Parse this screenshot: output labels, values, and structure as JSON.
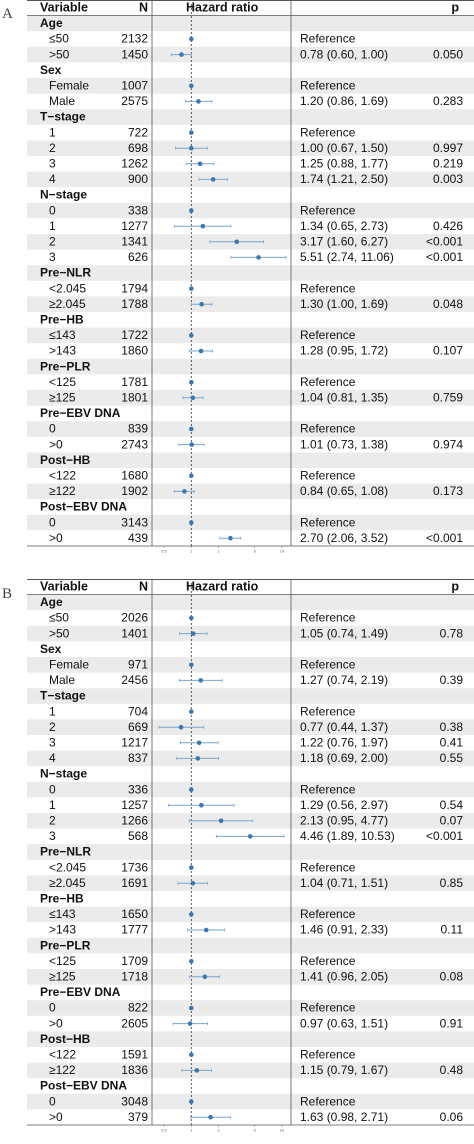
{
  "chart_data": [
    {
      "type": "forest",
      "panel_label": "A",
      "columns": {
        "variable": "Variable",
        "n": "N",
        "plot": "Hazard ratio",
        "p": "p"
      },
      "axis": {
        "scale": "log",
        "range": [
          0.5,
          10
        ],
        "reference_line": 1,
        "tick_labels": [
          "0.5",
          "1",
          "2",
          "5",
          "10"
        ]
      },
      "groups": [
        {
          "name": "Age",
          "rows": [
            {
              "label": "≤50",
              "n": "2132",
              "ci": "Reference",
              "p": "",
              "hr": 1.0,
              "lo": null,
              "hi": null
            },
            {
              "label": ">50",
              "n": "1450",
              "ci": "0.78 (0.60, 1.00)",
              "p": "0.050",
              "hr": 0.78,
              "lo": 0.6,
              "hi": 1.0
            }
          ]
        },
        {
          "name": "Sex",
          "rows": [
            {
              "label": "Female",
              "n": "1007",
              "ci": "Reference",
              "p": "",
              "hr": 1.0,
              "lo": null,
              "hi": null
            },
            {
              "label": "Male",
              "n": "2575",
              "ci": "1.20 (0.86, 1.69)",
              "p": "0.283",
              "hr": 1.2,
              "lo": 0.86,
              "hi": 1.69
            }
          ]
        },
        {
          "name": "T−stage",
          "rows": [
            {
              "label": "1",
              "n": "722",
              "ci": "Reference",
              "p": "",
              "hr": 1.0,
              "lo": null,
              "hi": null
            },
            {
              "label": "2",
              "n": "698",
              "ci": "1.00 (0.67, 1.50)",
              "p": "0.997",
              "hr": 1.0,
              "lo": 0.67,
              "hi": 1.5
            },
            {
              "label": "3",
              "n": "1262",
              "ci": "1.25 (0.88, 1.77)",
              "p": "0.219",
              "hr": 1.25,
              "lo": 0.88,
              "hi": 1.77
            },
            {
              "label": "4",
              "n": "900",
              "ci": "1.74 (1.21, 2.50)",
              "p": "0.003",
              "hr": 1.74,
              "lo": 1.21,
              "hi": 2.5
            }
          ]
        },
        {
          "name": "N−stage",
          "rows": [
            {
              "label": "0",
              "n": "338",
              "ci": "Reference",
              "p": "",
              "hr": 1.0,
              "lo": null,
              "hi": null
            },
            {
              "label": "1",
              "n": "1277",
              "ci": "1.34 (0.65, 2.73)",
              "p": "0.426",
              "hr": 1.34,
              "lo": 0.65,
              "hi": 2.73
            },
            {
              "label": "2",
              "n": "1341",
              "ci": "3.17 (1.60, 6.27)",
              "p": "<0.001",
              "hr": 3.17,
              "lo": 1.6,
              "hi": 6.27
            },
            {
              "label": "3",
              "n": "626",
              "ci": "5.51 (2.74, 11.06)",
              "p": "<0.001",
              "hr": 5.51,
              "lo": 2.74,
              "hi": 11.06
            }
          ]
        },
        {
          "name": "Pre−NLR",
          "rows": [
            {
              "label": "<2.045",
              "n": "1794",
              "ci": "Reference",
              "p": "",
              "hr": 1.0,
              "lo": null,
              "hi": null
            },
            {
              "label": "≥2.045",
              "n": "1788",
              "ci": "1.30 (1.00, 1.69)",
              "p": "0.048",
              "hr": 1.3,
              "lo": 1.0,
              "hi": 1.69
            }
          ]
        },
        {
          "name": "Pre−HB",
          "rows": [
            {
              "label": "≤143",
              "n": "1722",
              "ci": "Reference",
              "p": "",
              "hr": 1.0,
              "lo": null,
              "hi": null
            },
            {
              "label": ">143",
              "n": "1860",
              "ci": "1.28 (0.95, 1.72)",
              "p": "0.107",
              "hr": 1.28,
              "lo": 0.95,
              "hi": 1.72
            }
          ]
        },
        {
          "name": "Pre−PLR",
          "rows": [
            {
              "label": "<125",
              "n": "1781",
              "ci": "Reference",
              "p": "",
              "hr": 1.0,
              "lo": null,
              "hi": null
            },
            {
              "label": "≥125",
              "n": "1801",
              "ci": "1.04 (0.81, 1.35)",
              "p": "0.759",
              "hr": 1.04,
              "lo": 0.81,
              "hi": 1.35
            }
          ]
        },
        {
          "name": "Pre−EBV DNA",
          "rows": [
            {
              "label": "0",
              "n": "839",
              "ci": "Reference",
              "p": "",
              "hr": 1.0,
              "lo": null,
              "hi": null
            },
            {
              "label": ">0",
              "n": "2743",
              "ci": "1.01 (0.73, 1.38)",
              "p": "0.974",
              "hr": 1.01,
              "lo": 0.73,
              "hi": 1.38
            }
          ]
        },
        {
          "name": "Post−HB",
          "rows": [
            {
              "label": "<122",
              "n": "1680",
              "ci": "Reference",
              "p": "",
              "hr": 1.0,
              "lo": null,
              "hi": null
            },
            {
              "label": "≥122",
              "n": "1902",
              "ci": "0.84 (0.65, 1.08)",
              "p": "0.173",
              "hr": 0.84,
              "lo": 0.65,
              "hi": 1.08
            }
          ]
        },
        {
          "name": "Post−EBV DNA",
          "rows": [
            {
              "label": "0",
              "n": "3143",
              "ci": "Reference",
              "p": "",
              "hr": 1.0,
              "lo": null,
              "hi": null
            },
            {
              "label": ">0",
              "n": "439",
              "ci": "2.70 (2.06, 3.52)",
              "p": "<0.001",
              "hr": 2.7,
              "lo": 2.06,
              "hi": 3.52
            }
          ]
        }
      ]
    },
    {
      "type": "forest",
      "panel_label": "B",
      "columns": {
        "variable": "Variable",
        "n": "N",
        "plot": "Hazard ratio",
        "p": "p"
      },
      "axis": {
        "scale": "log",
        "range": [
          0.5,
          10
        ],
        "reference_line": 1,
        "tick_labels": [
          "0.5",
          "1",
          "2",
          "5",
          "10"
        ]
      },
      "groups": [
        {
          "name": "Age",
          "rows": [
            {
              "label": "≤50",
              "n": "2026",
              "ci": "Reference",
              "p": "",
              "hr": 1.0,
              "lo": null,
              "hi": null
            },
            {
              "label": ">50",
              "n": "1401",
              "ci": "1.05 (0.74, 1.49)",
              "p": "0.78",
              "hr": 1.05,
              "lo": 0.74,
              "hi": 1.49
            }
          ]
        },
        {
          "name": "Sex",
          "rows": [
            {
              "label": "Female",
              "n": "971",
              "ci": "Reference",
              "p": "",
              "hr": 1.0,
              "lo": null,
              "hi": null
            },
            {
              "label": "Male",
              "n": "2456",
              "ci": "1.27 (0.74, 2.19)",
              "p": "0.39",
              "hr": 1.27,
              "lo": 0.74,
              "hi": 2.19
            }
          ]
        },
        {
          "name": "T−stage",
          "rows": [
            {
              "label": "1",
              "n": "704",
              "ci": "Reference",
              "p": "",
              "hr": 1.0,
              "lo": null,
              "hi": null
            },
            {
              "label": "2",
              "n": "669",
              "ci": "0.77 (0.44, 1.37)",
              "p": "0.38",
              "hr": 0.77,
              "lo": 0.44,
              "hi": 1.37
            },
            {
              "label": "3",
              "n": "1217",
              "ci": "1.22 (0.76, 1.97)",
              "p": "0.41",
              "hr": 1.22,
              "lo": 0.76,
              "hi": 1.97
            },
            {
              "label": "4",
              "n": "837",
              "ci": "1.18 (0.69, 2.00)",
              "p": "0.55",
              "hr": 1.18,
              "lo": 0.69,
              "hi": 2.0
            }
          ]
        },
        {
          "name": "N−stage",
          "rows": [
            {
              "label": "0",
              "n": "336",
              "ci": "Reference",
              "p": "",
              "hr": 1.0,
              "lo": null,
              "hi": null
            },
            {
              "label": "1",
              "n": "1257",
              "ci": "1.29 (0.56, 2.97)",
              "p": "0.54",
              "hr": 1.29,
              "lo": 0.56,
              "hi": 2.97
            },
            {
              "label": "2",
              "n": "1266",
              "ci": "2.13 (0.95, 4.77)",
              "p": "0.07",
              "hr": 2.13,
              "lo": 0.95,
              "hi": 4.77
            },
            {
              "label": "3",
              "n": "568",
              "ci": "4.46 (1.89, 10.53)",
              "p": "<0.001",
              "hr": 4.46,
              "lo": 1.89,
              "hi": 10.53
            }
          ]
        },
        {
          "name": "Pre−NLR",
          "rows": [
            {
              "label": "<2.045",
              "n": "1736",
              "ci": "Reference",
              "p": "",
              "hr": 1.0,
              "lo": null,
              "hi": null
            },
            {
              "label": "≥2.045",
              "n": "1691",
              "ci": "1.04 (0.71, 1.51)",
              "p": "0.85",
              "hr": 1.04,
              "lo": 0.71,
              "hi": 1.51
            }
          ]
        },
        {
          "name": "Pre−HB",
          "rows": [
            {
              "label": "≤143",
              "n": "1650",
              "ci": "Reference",
              "p": "",
              "hr": 1.0,
              "lo": null,
              "hi": null
            },
            {
              "label": ">143",
              "n": "1777",
              "ci": "1.46 (0.91, 2.33)",
              "p": "0.11",
              "hr": 1.46,
              "lo": 0.91,
              "hi": 2.33
            }
          ]
        },
        {
          "name": "Pre−PLR",
          "rows": [
            {
              "label": "<125",
              "n": "1709",
              "ci": "Reference",
              "p": "",
              "hr": 1.0,
              "lo": null,
              "hi": null
            },
            {
              "label": "≥125",
              "n": "1718",
              "ci": "1.41 (0.96, 2.05)",
              "p": "0.08",
              "hr": 1.41,
              "lo": 0.96,
              "hi": 2.05
            }
          ]
        },
        {
          "name": "Pre−EBV DNA",
          "rows": [
            {
              "label": "0",
              "n": "822",
              "ci": "Reference",
              "p": "",
              "hr": 1.0,
              "lo": null,
              "hi": null
            },
            {
              "label": ">0",
              "n": "2605",
              "ci": "0.97 (0.63, 1.51)",
              "p": "0.91",
              "hr": 0.97,
              "lo": 0.63,
              "hi": 1.51
            }
          ]
        },
        {
          "name": "Post−HB",
          "rows": [
            {
              "label": "<122",
              "n": "1591",
              "ci": "Reference",
              "p": "",
              "hr": 1.0,
              "lo": null,
              "hi": null
            },
            {
              "label": "≥122",
              "n": "1836",
              "ci": "1.15 (0.79, 1.67)",
              "p": "0.48",
              "hr": 1.15,
              "lo": 0.79,
              "hi": 1.67
            }
          ]
        },
        {
          "name": "Post−EBV DNA",
          "rows": [
            {
              "label": "0",
              "n": "3048",
              "ci": "Reference",
              "p": "",
              "hr": 1.0,
              "lo": null,
              "hi": null
            },
            {
              "label": ">0",
              "n": "379",
              "ci": "1.63 (0.98, 2.71)",
              "p": "0.06",
              "hr": 1.63,
              "lo": 0.98,
              "hi": 2.71
            }
          ]
        }
      ]
    }
  ],
  "colors": {
    "point": "#3b78b0",
    "ci": "#7aa6cf",
    "shade": "#ebebeb",
    "border": "#555555",
    "ref_line": "#333333",
    "text": "#111111"
  }
}
